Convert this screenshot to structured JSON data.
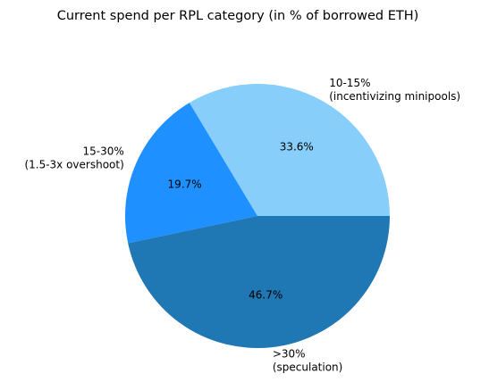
{
  "chart_data": {
    "type": "pie",
    "title": "Current spend per RPL category (in % of borrowed ETH)",
    "slices": [
      {
        "label_lines": [
          "10-15%",
          "(incentivizing minipools)"
        ],
        "value": 33.6,
        "pct_label": "33.6%",
        "color": "#87cefa"
      },
      {
        "label_lines": [
          "15-30%",
          "(1.5-3x overshoot)"
        ],
        "value": 19.7,
        "pct_label": "19.7%",
        "color": "#1e90ff"
      },
      {
        "label_lines": [
          ">30%",
          "(speculation)"
        ],
        "value": 46.7,
        "pct_label": "46.7%",
        "color": "#1f77b4"
      }
    ],
    "start_angle_deg": 0,
    "direction": "counterclockwise",
    "legend": "none"
  }
}
